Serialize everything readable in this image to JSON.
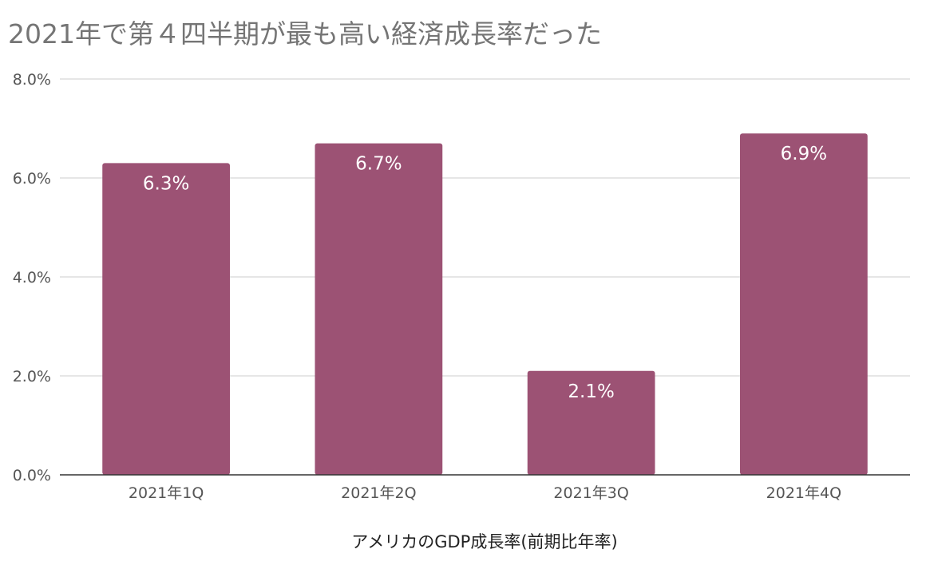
{
  "chart_data": {
    "type": "bar",
    "title": "2021年で第４四半期が最も高い経済成長率だった",
    "xlabel": "アメリカのGDP成長率(前期比年率)",
    "ylabel": "",
    "categories": [
      "2021年1Q",
      "2021年2Q",
      "2021年3Q",
      "2021年4Q"
    ],
    "values": [
      6.3,
      6.7,
      2.1,
      6.9
    ],
    "data_labels": [
      "6.3%",
      "6.7%",
      "2.1%",
      "6.9%"
    ],
    "ylim": [
      0,
      8
    ],
    "y_ticks": [
      0,
      2,
      4,
      6,
      8
    ],
    "y_tick_labels": [
      "0.0%",
      "2.0%",
      "4.0%",
      "6.0%",
      "8.0%"
    ],
    "grid": true,
    "legend": "none",
    "colors": {
      "bar": "#9c5274",
      "grid": "#cccccc",
      "axis": "#333333",
      "title": "#757575"
    }
  }
}
